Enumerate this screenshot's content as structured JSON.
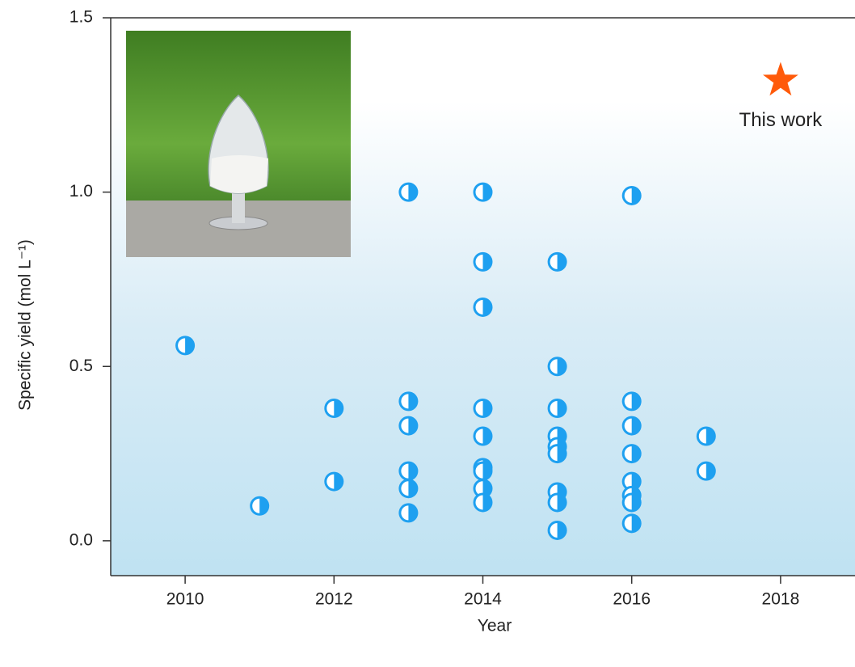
{
  "chart_data": {
    "type": "scatter",
    "x_label": "Year",
    "y_label": "Specific yield (mol L⁻¹)",
    "x": [
      2010,
      2011,
      2012,
      2012,
      2013,
      2013,
      2013,
      2013,
      2013,
      2013,
      2014,
      2014,
      2014,
      2014,
      2014,
      2014,
      2014,
      2014,
      2014,
      2015,
      2015,
      2015,
      2015,
      2015,
      2015,
      2015,
      2015,
      2015,
      2016,
      2016,
      2016,
      2016,
      2016,
      2016,
      2016,
      2016,
      2017,
      2017
    ],
    "values": [
      0.56,
      0.1,
      0.38,
      0.17,
      1.0,
      0.4,
      0.33,
      0.2,
      0.15,
      0.08,
      1.0,
      0.8,
      0.67,
      0.38,
      0.3,
      0.21,
      0.2,
      0.15,
      0.11,
      0.8,
      0.5,
      0.38,
      0.3,
      0.27,
      0.25,
      0.14,
      0.11,
      0.03,
      0.99,
      0.4,
      0.33,
      0.25,
      0.17,
      0.13,
      0.11,
      0.05,
      0.3,
      0.2
    ],
    "color": "#1ea0f0",
    "highlight": {
      "x": 2018,
      "y": 1.32,
      "label": "This work",
      "color": "#ff5a0a"
    },
    "xlim": [
      2009,
      2019
    ],
    "ylim": [
      -0.1,
      1.5
    ],
    "xticks": [
      2010,
      2012,
      2014,
      2016,
      2018
    ],
    "yticks": [
      {
        "value": 0,
        "label": "0.0"
      },
      0.5,
      {
        "value": 1,
        "label": "1.0"
      },
      1.5
    ]
  }
}
